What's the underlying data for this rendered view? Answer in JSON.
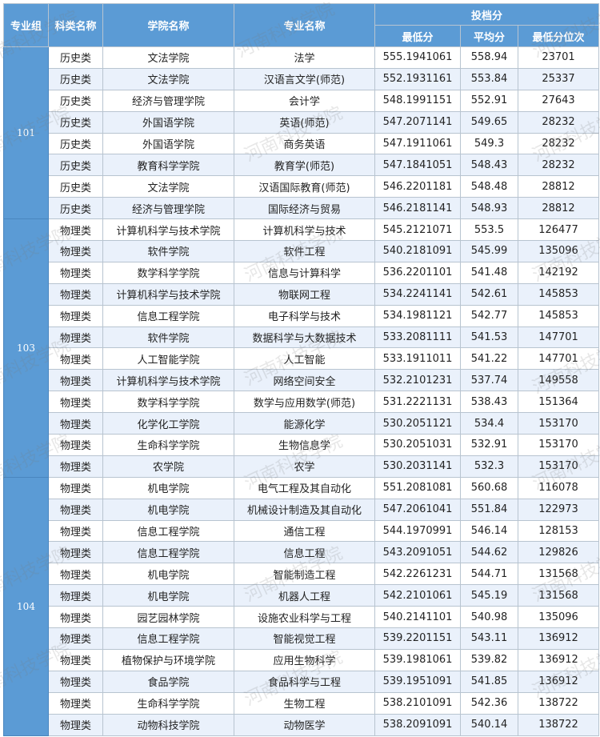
{
  "header": {
    "group": "专业组",
    "category": "科类名称",
    "college": "学院名称",
    "major": "专业名称",
    "score_group": "投档分",
    "min_score": "最低分",
    "avg_score": "平均分",
    "min_rank": "最低分位次"
  },
  "colors": {
    "header_bg": "#5b9bd5",
    "alt_row_bg": "#eaf1fb"
  },
  "watermark": "河南科技学院",
  "groups": [
    {
      "id": "101",
      "rows": [
        [
          "历史类",
          "文法学院",
          "法学",
          "555.1941061",
          "558.94",
          "23701"
        ],
        [
          "历史类",
          "文法学院",
          "汉语言文学(师范)",
          "552.1931161",
          "553.84",
          "25337"
        ],
        [
          "历史类",
          "经济与管理学院",
          "会计学",
          "548.1991151",
          "552.91",
          "27643"
        ],
        [
          "历史类",
          "外国语学院",
          "英语(师范)",
          "547.2071141",
          "549.65",
          "28232"
        ],
        [
          "历史类",
          "外国语学院",
          "商务英语",
          "547.1911061",
          "549.3",
          "28232"
        ],
        [
          "历史类",
          "教育科学学院",
          "教育学(师范)",
          "547.1841051",
          "548.43",
          "28232"
        ],
        [
          "历史类",
          "文法学院",
          "汉语国际教育(师范)",
          "546.2201181",
          "548.48",
          "28812"
        ],
        [
          "历史类",
          "经济与管理学院",
          "国际经济与贸易",
          "546.2181141",
          "548.93",
          "28812"
        ]
      ]
    },
    {
      "id": "103",
      "rows": [
        [
          "物理类",
          "计算机科学与技术学院",
          "计算机科学与技术",
          "545.2121071",
          "553.5",
          "126477"
        ],
        [
          "物理类",
          "软件学院",
          "软件工程",
          "540.2181091",
          "545.99",
          "135096"
        ],
        [
          "物理类",
          "数学科学学院",
          "信息与计算科学",
          "536.2201101",
          "541.48",
          "142192"
        ],
        [
          "物理类",
          "计算机科学与技术学院",
          "物联网工程",
          "534.2241141",
          "542.61",
          "145853"
        ],
        [
          "物理类",
          "信息工程学院",
          "电子科学与技术",
          "534.1981121",
          "542.77",
          "145853"
        ],
        [
          "物理类",
          "软件学院",
          "数据科学与大数据技术",
          "533.2081111",
          "541.53",
          "147701"
        ],
        [
          "物理类",
          "人工智能学院",
          "人工智能",
          "533.1911011",
          "541.22",
          "147701"
        ],
        [
          "物理类",
          "计算机科学与技术学院",
          "网络空间安全",
          "532.2101231",
          "537.74",
          "149558"
        ],
        [
          "物理类",
          "数学科学学院",
          "数学与应用数学(师范)",
          "531.2221131",
          "538.43",
          "151364"
        ],
        [
          "物理类",
          "化学化工学院",
          "能源化学",
          "530.2051121",
          "534.4",
          "153170"
        ],
        [
          "物理类",
          "生命科学学院",
          "生物信息学",
          "530.2051031",
          "532.91",
          "153170"
        ],
        [
          "物理类",
          "农学院",
          "农学",
          "530.2031141",
          "532.3",
          "153170"
        ]
      ]
    },
    {
      "id": "104",
      "rows": [
        [
          "物理类",
          "机电学院",
          "电气工程及其自动化",
          "551.2081081",
          "560.68",
          "116078"
        ],
        [
          "物理类",
          "机电学院",
          "机械设计制造及其自动化",
          "547.2061041",
          "551.84",
          "122973"
        ],
        [
          "物理类",
          "信息工程学院",
          "通信工程",
          "544.1970991",
          "546.14",
          "128153"
        ],
        [
          "物理类",
          "信息工程学院",
          "信息工程",
          "543.2091051",
          "544.62",
          "129826"
        ],
        [
          "物理类",
          "机电学院",
          "智能制造工程",
          "542.2261231",
          "544.71",
          "131568"
        ],
        [
          "物理类",
          "机电学院",
          "机器人工程",
          "542.2101061",
          "545.19",
          "131568"
        ],
        [
          "物理类",
          "园艺园林学院",
          "设施农业科学与工程",
          "540.2141101",
          "540.98",
          "135096"
        ],
        [
          "物理类",
          "信息工程学院",
          "智能视觉工程",
          "539.2201151",
          "543.11",
          "136912"
        ],
        [
          "物理类",
          "植物保护与环境学院",
          "应用生物科学",
          "539.1981061",
          "539.82",
          "136912"
        ],
        [
          "物理类",
          "食品学院",
          "食品科学与工程",
          "539.1951091",
          "541.85",
          "136912"
        ],
        [
          "物理类",
          "生命科学学院",
          "生物工程",
          "538.2101091",
          "542.36",
          "138722"
        ],
        [
          "物理类",
          "动物科技学院",
          "动物医学",
          "538.2091091",
          "540.14",
          "138722"
        ]
      ]
    }
  ]
}
